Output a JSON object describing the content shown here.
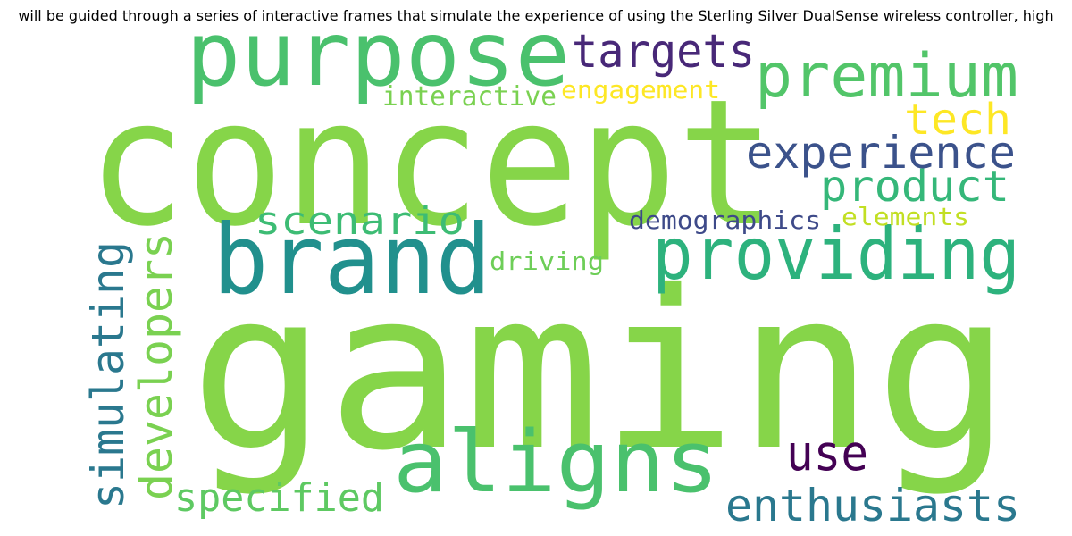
{
  "title": "will be guided through a series of interactive frames that simulate the experience of using the Sterling Silver DualSense wireless controller, high",
  "words": [
    {
      "id": "gaming",
      "text": "gaming",
      "color": "#86d549"
    },
    {
      "id": "concept",
      "text": "concept",
      "color": "#86d549"
    },
    {
      "id": "purpose",
      "text": "purpose",
      "color": "#4ac16d"
    },
    {
      "id": "premium",
      "text": "premium",
      "color": "#52c569"
    },
    {
      "id": "targets",
      "text": "targets",
      "color": "#482878"
    },
    {
      "id": "tech",
      "text": "tech",
      "color": "#fde725"
    },
    {
      "id": "experience",
      "text": "experience",
      "color": "#3b528b"
    },
    {
      "id": "product",
      "text": "product",
      "color": "#35b779"
    },
    {
      "id": "brand",
      "text": "brand",
      "color": "#21908d"
    },
    {
      "id": "providing",
      "text": "providing",
      "color": "#2db27d"
    },
    {
      "id": "scenario",
      "text": "scenario",
      "color": "#3dbc74"
    },
    {
      "id": "interactive",
      "text": "interactive",
      "color": "#7ad151"
    },
    {
      "id": "engagement",
      "text": "engagement",
      "color": "#fde725"
    },
    {
      "id": "demographics",
      "text": "demographics",
      "color": "#3e4a89"
    },
    {
      "id": "elements",
      "text": "elements",
      "color": "#c2df23"
    },
    {
      "id": "driving",
      "text": "driving",
      "color": "#6ece58"
    },
    {
      "id": "simulating",
      "text": "simulating",
      "color": "#2a788e"
    },
    {
      "id": "developers",
      "text": "developers",
      "color": "#7ad151"
    },
    {
      "id": "aligns",
      "text": "aligns",
      "color": "#4ac16d"
    },
    {
      "id": "use",
      "text": "use",
      "color": "#440154"
    },
    {
      "id": "specified",
      "text": "specified",
      "color": "#5ec962"
    },
    {
      "id": "enthusiasts",
      "text": "enthusiasts",
      "color": "#2a788e"
    }
  ]
}
